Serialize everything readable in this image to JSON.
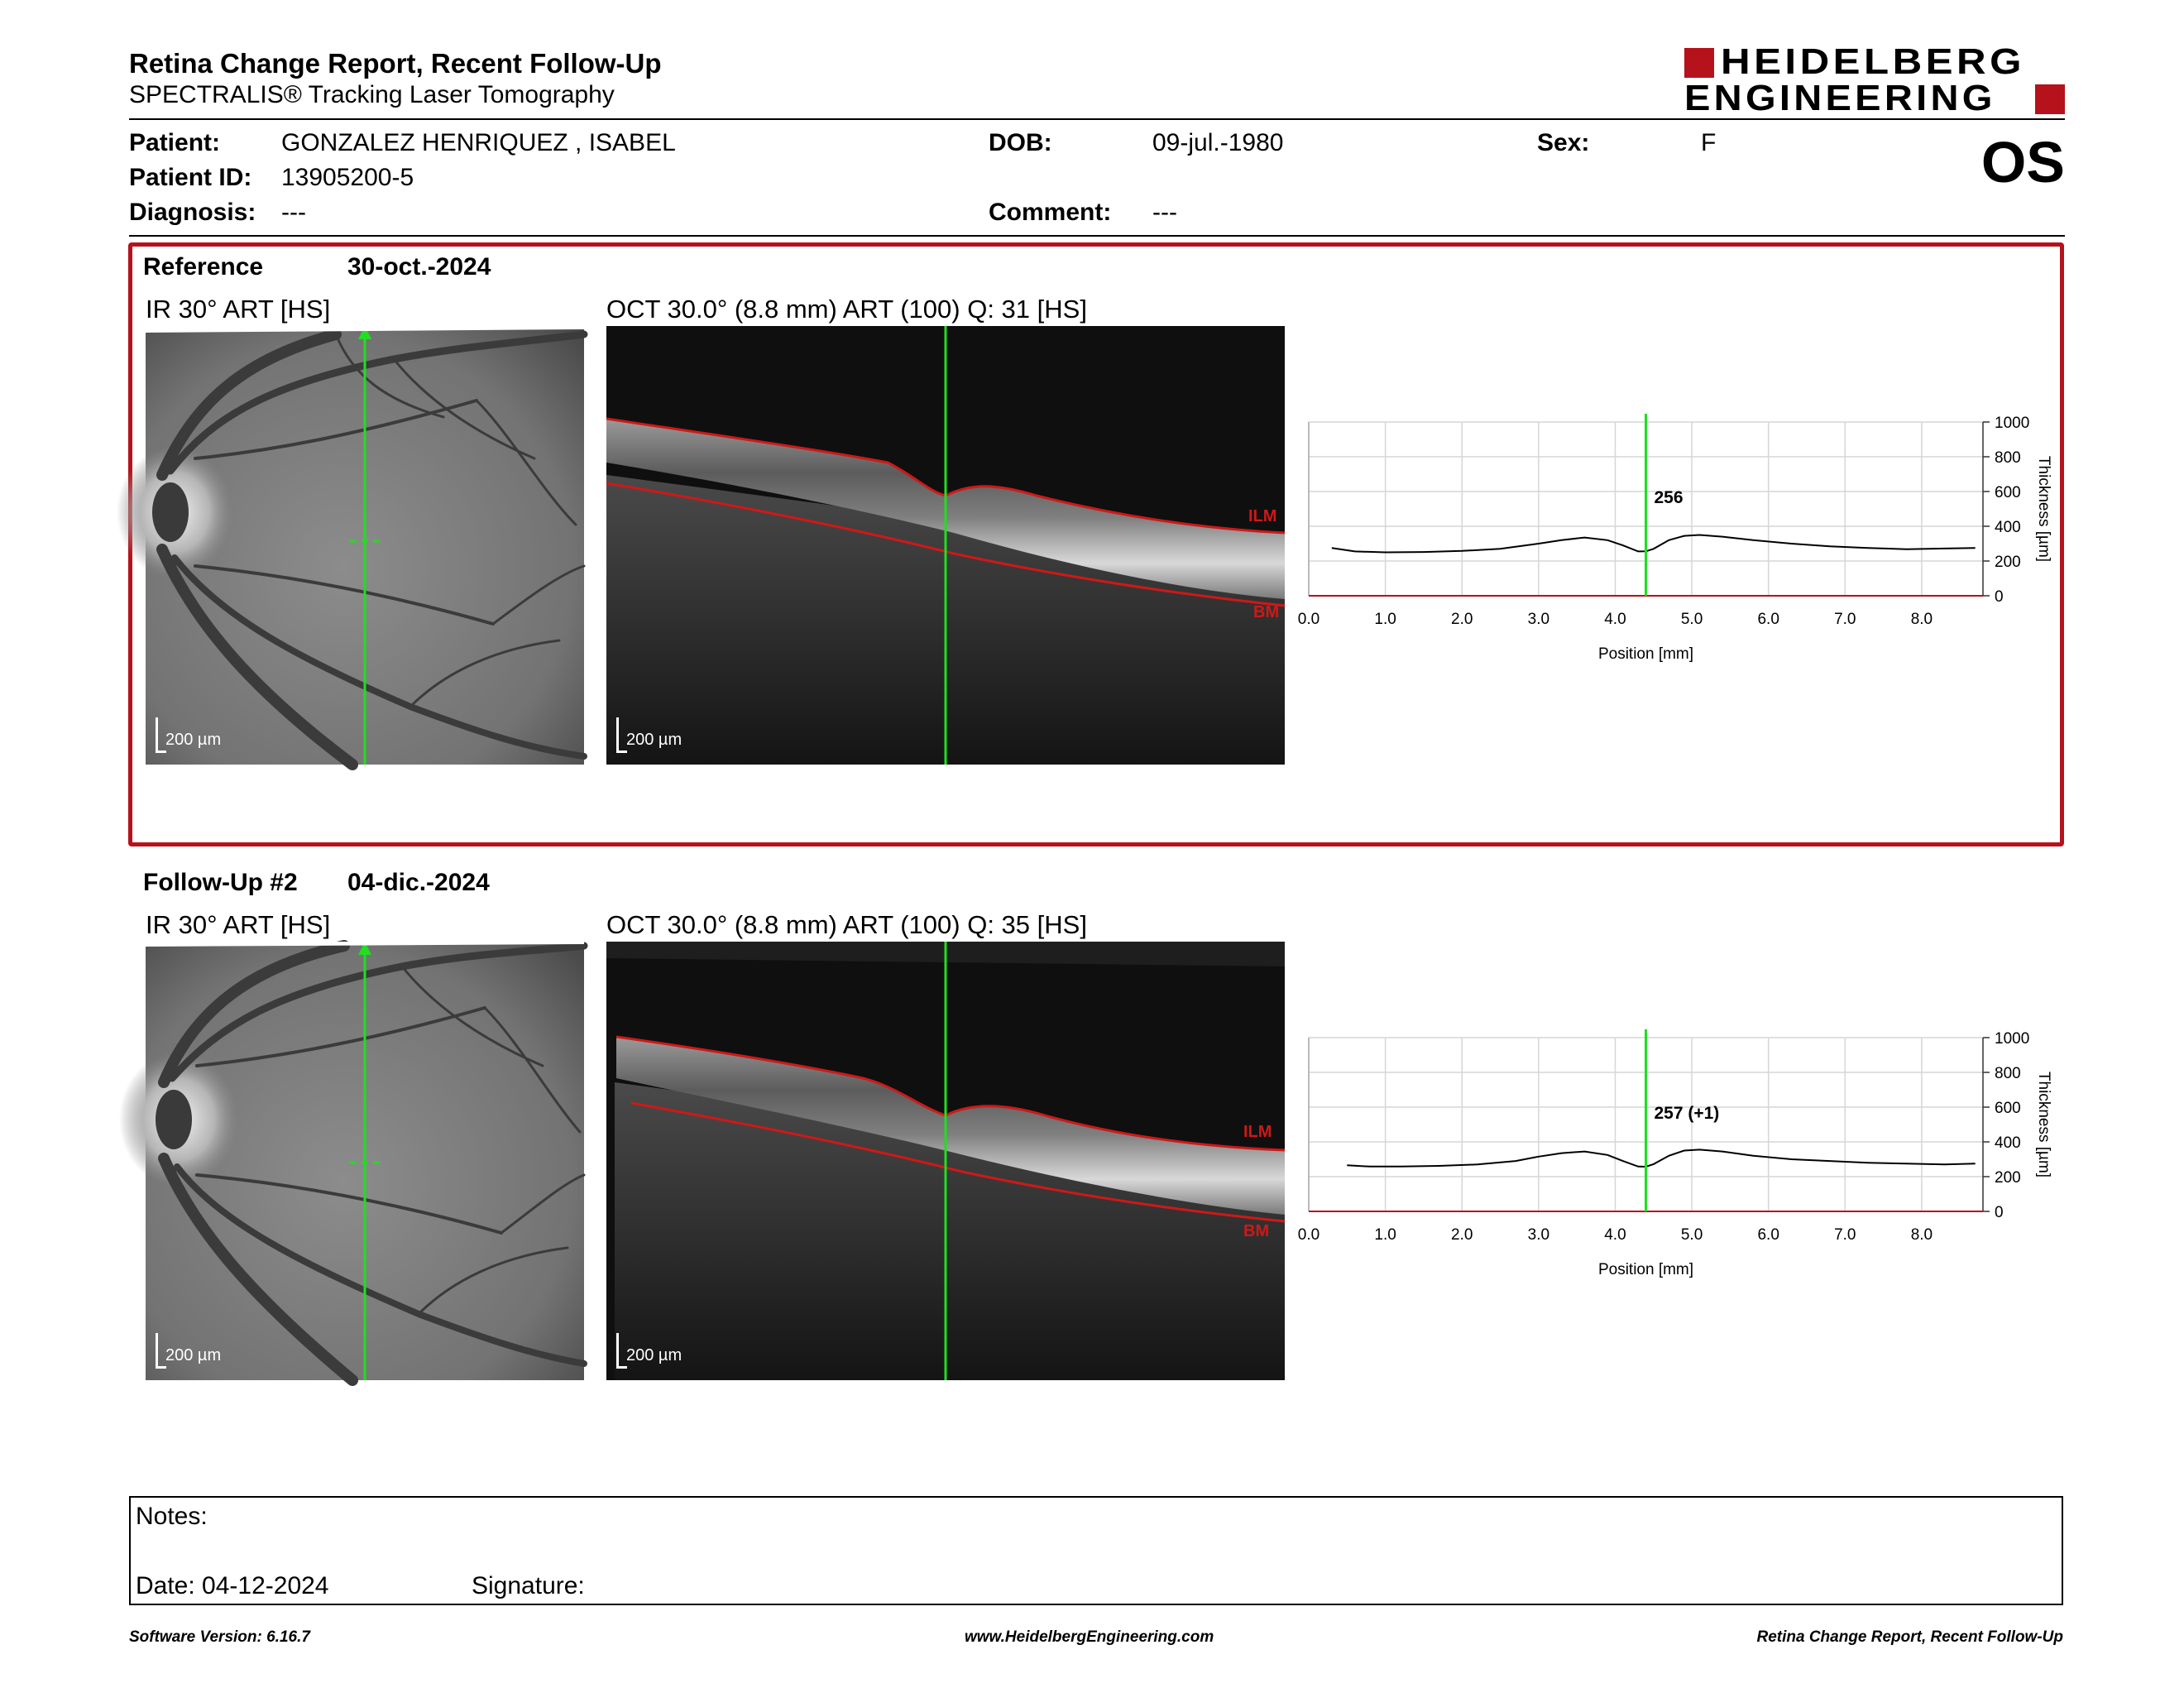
{
  "header": {
    "title": "Retina Change Report, Recent Follow-Up",
    "subtitle": "SPECTRALIS® Tracking Laser Tomography",
    "logo_line1": "HEIDELBERG",
    "logo_line2": "ENGINEERING",
    "eye": "OS"
  },
  "patient": {
    "patient_label": "Patient:",
    "patient_value": "GONZALEZ HENRIQUEZ , ISABEL",
    "dob_label": "DOB:",
    "dob_value": "09-jul.-1980",
    "sex_label": "Sex:",
    "sex_value": "F",
    "id_label": "Patient ID:",
    "id_value": "13905200-5",
    "diagnosis_label": "Diagnosis:",
    "diagnosis_value": "---",
    "comment_label": "Comment:",
    "comment_value": "---"
  },
  "reference": {
    "label": "Reference",
    "date": "30-oct.-2024",
    "ir_caption": "IR 30° ART [HS]",
    "oct_caption": "OCT 30.0° (8.8 mm) ART (100) Q: 31 [HS]",
    "scale_ir": "200 µm",
    "scale_oct": "200 µm",
    "ilm": "ILM",
    "bm": "BM"
  },
  "followup": {
    "label": "Follow-Up #2",
    "date": "04-dic.-2024",
    "ir_caption": "IR 30° ART [HS]",
    "oct_caption": "OCT 30.0° (8.8 mm) ART (100) Q: 35 [HS]",
    "scale_ir": "200 µm",
    "scale_oct": "200 µm",
    "ilm": "ILM",
    "bm": "BM"
  },
  "chart_data": [
    {
      "type": "line",
      "xlabel": "Position [mm]",
      "ylabel": "Thickness [µm]",
      "xlim": [
        0,
        8.8
      ],
      "ylim": [
        0,
        1000
      ],
      "xticks": [
        "0.0",
        "1.0",
        "2.0",
        "3.0",
        "4.0",
        "5.0",
        "6.0",
        "7.0",
        "8.0"
      ],
      "yticks": [
        "0",
        "200",
        "400",
        "600",
        "800",
        "1000"
      ],
      "grid": true,
      "marker_x": 4.4,
      "marker_label": "256",
      "series": [
        {
          "x": [
            0.3,
            0.6,
            1.0,
            1.5,
            2.0,
            2.5,
            3.0,
            3.3,
            3.6,
            3.9,
            4.1,
            4.3,
            4.4,
            4.5,
            4.7,
            4.9,
            5.1,
            5.4,
            5.8,
            6.3,
            6.8,
            7.3,
            7.8,
            8.3,
            8.7
          ],
          "y": [
            275,
            255,
            250,
            252,
            258,
            270,
            300,
            320,
            335,
            320,
            290,
            255,
            256,
            270,
            320,
            345,
            350,
            340,
            320,
            300,
            285,
            275,
            268,
            272,
            275
          ]
        }
      ]
    },
    {
      "type": "line",
      "xlabel": "Position [mm]",
      "ylabel": "Thickness [µm]",
      "xlim": [
        0,
        8.8
      ],
      "ylim": [
        0,
        1000
      ],
      "xticks": [
        "0.0",
        "1.0",
        "2.0",
        "3.0",
        "4.0",
        "5.0",
        "6.0",
        "7.0",
        "8.0"
      ],
      "yticks": [
        "0",
        "200",
        "400",
        "600",
        "800",
        "1000"
      ],
      "grid": true,
      "marker_x": 4.4,
      "marker_label": "257 (+1)",
      "series": [
        {
          "x": [
            0.5,
            0.8,
            1.2,
            1.7,
            2.2,
            2.7,
            3.0,
            3.3,
            3.6,
            3.9,
            4.1,
            4.3,
            4.4,
            4.5,
            4.7,
            4.9,
            5.1,
            5.4,
            5.8,
            6.3,
            6.8,
            7.3,
            7.8,
            8.3,
            8.7
          ],
          "y": [
            265,
            258,
            258,
            262,
            270,
            290,
            315,
            335,
            345,
            325,
            290,
            258,
            257,
            272,
            320,
            350,
            355,
            345,
            320,
            300,
            290,
            280,
            275,
            270,
            275
          ]
        }
      ]
    }
  ],
  "notes": {
    "notes_label": "Notes:",
    "date_label": "Date: 04-12-2024",
    "signature_label": "Signature:"
  },
  "footer": {
    "left": "Software Version: 6.16.7",
    "center": "www.HeidelbergEngineering.com",
    "right": "Retina Change Report, Recent Follow-Up"
  },
  "colors": {
    "accent": "#b5121b",
    "marker": "#22dd22",
    "ilm_line": "#d01818"
  }
}
